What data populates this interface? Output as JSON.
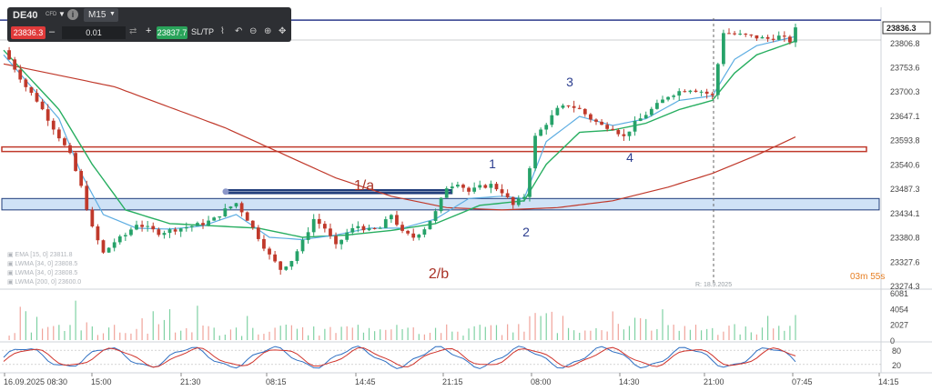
{
  "toolbar": {
    "symbol": "DE40",
    "symbol_tag": "CFD",
    "timeframe": "M15",
    "sell_price": "23836.3",
    "quantity": "0.01",
    "buy_price": "23837.7",
    "sltp_label": "SL/TP"
  },
  "countdown": "03m 55s",
  "crosshair_date": "R: 18.9.2025",
  "legend": [
    "EMA [15, 0]  23811.8",
    "LWMA [34, 0]  23808.5",
    "LWMA [34, 0]  23808.5",
    "LWMA [200, 0]  23600.0"
  ],
  "colors": {
    "bull": "#26a269",
    "bear": "#c0392b",
    "ema15": "#5dade2",
    "lwma34": "#27ae60",
    "lwma200": "#c0392b",
    "zone_blue": "#cfe2f6",
    "zone_blue_border": "#1f3c7a",
    "zone_red_border": "#c0392b",
    "label_red": "#a93226",
    "label_blue": "#2c3e8f",
    "countdown": "#e67e22"
  },
  "chart_data": {
    "type": "candlestick",
    "instrument": "DE40",
    "timeframe": "M15",
    "x_tick_labels": [
      "16.09.2025 08:30",
      "15:00",
      "21:30",
      "08:15",
      "14:45",
      "21:15",
      "08:00",
      "14:30",
      "21:00",
      "07:45",
      "14:15"
    ],
    "y_tick_labels": [
      "23806.8",
      "23753.6",
      "23700.3",
      "23647.1",
      "23593.8",
      "23540.6",
      "23487.3",
      "23434.1",
      "23380.8",
      "23327.6",
      "23274.3"
    ],
    "ylim": [
      23274.3,
      23836.3
    ],
    "last_price": "23836.3",
    "indicators": [
      "EMA [15, 0]",
      "LWMA [34, 0]",
      "LWMA [200, 0]"
    ],
    "close_path": [
      [
        0,
        23790
      ],
      [
        2,
        23750
      ],
      [
        4,
        23710
      ],
      [
        6,
        23680
      ],
      [
        8,
        23640
      ],
      [
        10,
        23600
      ],
      [
        12,
        23560
      ],
      [
        14,
        23490
      ],
      [
        16,
        23400
      ],
      [
        18,
        23345
      ],
      [
        20,
        23370
      ],
      [
        22,
        23385
      ],
      [
        24,
        23410
      ],
      [
        26,
        23400
      ],
      [
        28,
        23390
      ],
      [
        30,
        23395
      ],
      [
        32,
        23400
      ],
      [
        34,
        23405
      ],
      [
        36,
        23410
      ],
      [
        38,
        23420
      ],
      [
        40,
        23440
      ],
      [
        42,
        23455
      ],
      [
        44,
        23420
      ],
      [
        46,
        23380
      ],
      [
        48,
        23340
      ],
      [
        50,
        23310
      ],
      [
        52,
        23330
      ],
      [
        54,
        23370
      ],
      [
        56,
        23420
      ],
      [
        58,
        23400
      ],
      [
        60,
        23360
      ],
      [
        62,
        23390
      ],
      [
        64,
        23405
      ],
      [
        66,
        23395
      ],
      [
        68,
        23400
      ],
      [
        70,
        23430
      ],
      [
        72,
        23390
      ],
      [
        74,
        23380
      ],
      [
        76,
        23400
      ],
      [
        78,
        23435
      ],
      [
        80,
        23490
      ],
      [
        82,
        23500
      ],
      [
        84,
        23480
      ],
      [
        86,
        23490
      ],
      [
        88,
        23495
      ],
      [
        90,
        23480
      ],
      [
        92,
        23450
      ],
      [
        94,
        23470
      ],
      [
        96,
        23600
      ],
      [
        98,
        23630
      ],
      [
        100,
        23660
      ],
      [
        102,
        23670
      ],
      [
        104,
        23660
      ],
      [
        106,
        23640
      ],
      [
        108,
        23625
      ],
      [
        110,
        23620
      ],
      [
        112,
        23600
      ],
      [
        114,
        23630
      ],
      [
        116,
        23650
      ],
      [
        118,
        23670
      ],
      [
        120,
        23690
      ],
      [
        122,
        23700
      ],
      [
        124,
        23705
      ],
      [
        126,
        23700
      ],
      [
        128,
        23690
      ],
      [
        130,
        23830
      ],
      [
        132,
        23825
      ],
      [
        134,
        23822
      ],
      [
        136,
        23818
      ],
      [
        138,
        23815
      ],
      [
        140,
        23820
      ],
      [
        142,
        23810
      ],
      [
        143,
        23836
      ]
    ],
    "ema15_path": [
      [
        0,
        23780
      ],
      [
        10,
        23640
      ],
      [
        14,
        23520
      ],
      [
        18,
        23430
      ],
      [
        24,
        23400
      ],
      [
        30,
        23398
      ],
      [
        36,
        23405
      ],
      [
        42,
        23430
      ],
      [
        48,
        23380
      ],
      [
        54,
        23375
      ],
      [
        60,
        23385
      ],
      [
        66,
        23400
      ],
      [
        72,
        23400
      ],
      [
        78,
        23420
      ],
      [
        84,
        23465
      ],
      [
        90,
        23470
      ],
      [
        94,
        23465
      ],
      [
        98,
        23590
      ],
      [
        104,
        23645
      ],
      [
        110,
        23625
      ],
      [
        116,
        23640
      ],
      [
        122,
        23680
      ],
      [
        128,
        23690
      ],
      [
        132,
        23770
      ],
      [
        136,
        23800
      ],
      [
        143,
        23820
      ]
    ],
    "lwma34_path": [
      [
        0,
        23790
      ],
      [
        10,
        23660
      ],
      [
        16,
        23540
      ],
      [
        22,
        23440
      ],
      [
        30,
        23410
      ],
      [
        38,
        23405
      ],
      [
        46,
        23400
      ],
      [
        54,
        23380
      ],
      [
        62,
        23385
      ],
      [
        70,
        23395
      ],
      [
        78,
        23410
      ],
      [
        86,
        23450
      ],
      [
        94,
        23460
      ],
      [
        98,
        23540
      ],
      [
        104,
        23610
      ],
      [
        110,
        23615
      ],
      [
        116,
        23630
      ],
      [
        122,
        23660
      ],
      [
        128,
        23680
      ],
      [
        132,
        23740
      ],
      [
        136,
        23780
      ],
      [
        143,
        23810
      ]
    ],
    "lwma200_path": [
      [
        0,
        23760
      ],
      [
        20,
        23710
      ],
      [
        40,
        23620
      ],
      [
        60,
        23510
      ],
      [
        70,
        23470
      ],
      [
        80,
        23445
      ],
      [
        90,
        23440
      ],
      [
        100,
        23445
      ],
      [
        110,
        23460
      ],
      [
        120,
        23490
      ],
      [
        128,
        23520
      ],
      [
        136,
        23560
      ],
      [
        143,
        23600
      ]
    ],
    "volume_ylim": [
      0,
      6081
    ],
    "volume_ticks": [
      "6081",
      "4054",
      "2027",
      "0"
    ],
    "oscillator_ticks": [
      "80",
      "20"
    ],
    "oscillator_ylim": [
      0,
      100
    ],
    "annotations": [
      "1/a",
      "2/b",
      "1",
      "2",
      "3",
      "4"
    ],
    "zones": [
      {
        "type": "support",
        "from": 23440,
        "to": 23465
      },
      {
        "type": "resistance",
        "from": 23568,
        "to": 23578
      },
      {
        "type": "box",
        "from": 23477,
        "to": 23483
      }
    ],
    "horizontal_line": 23856
  }
}
